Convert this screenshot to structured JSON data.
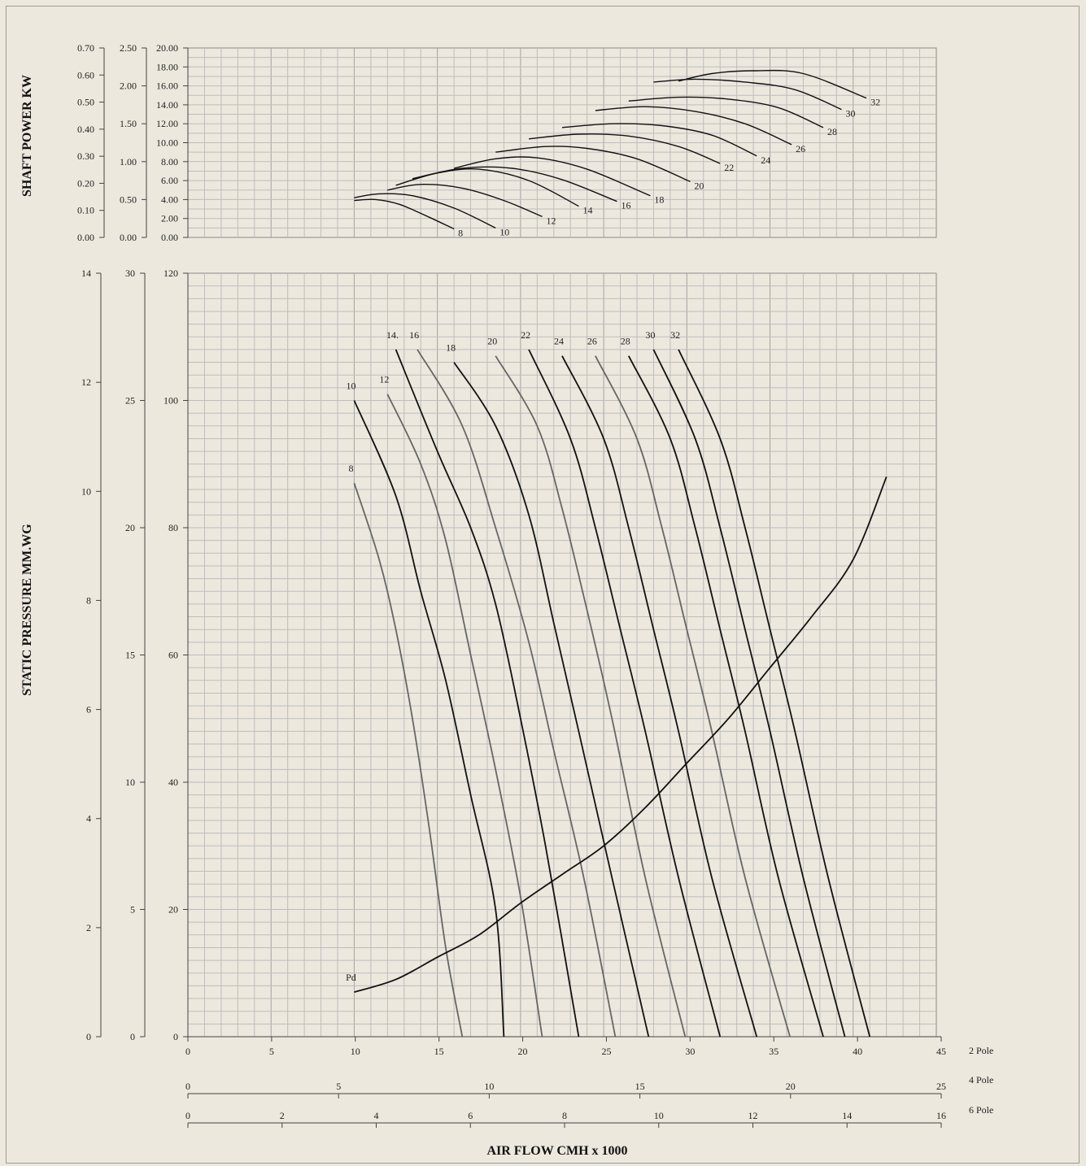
{
  "power_chart": {
    "ylabel": "SHAFT POWER KW",
    "axis_a": [
      "0.00",
      "0.10",
      "0.20",
      "0.30",
      "0.40",
      "0.50",
      "0.60",
      "0.70"
    ],
    "axis_b": [
      "0.00",
      "0.50",
      "1.00",
      "1.50",
      "2.00",
      "2.50"
    ],
    "axis_c": [
      "0.00",
      "2.00",
      "4.00",
      "6.00",
      "8.00",
      "10.00",
      "12.00",
      "14.00",
      "16.00",
      "18.00",
      "20.00"
    ]
  },
  "pressure_chart": {
    "ylabel": "STATIC PRESSURE MM.WG",
    "axis_a": [
      "0",
      "2",
      "4",
      "6",
      "8",
      "10",
      "12",
      "14"
    ],
    "axis_b": [
      "0",
      "5",
      "10",
      "15",
      "20",
      "25",
      "30"
    ],
    "axis_c": [
      "0",
      "20",
      "40",
      "60",
      "80",
      "100",
      "120"
    ]
  },
  "x_axes": {
    "pole2": {
      "label": "2 Pole",
      "ticks": [
        "0",
        "5",
        "10",
        "15",
        "20",
        "25",
        "30",
        "35",
        "40",
        "45"
      ]
    },
    "pole4": {
      "label": "4 Pole",
      "ticks": [
        "0",
        "5",
        "10",
        "15",
        "20",
        "25"
      ]
    },
    "pole6": {
      "label": "6 Pole",
      "ticks": [
        "0",
        "2",
        "4",
        "6",
        "8",
        "10",
        "12",
        "14",
        "16"
      ]
    },
    "title": "AIR FLOW CMH x 1000"
  },
  "colors": {
    "black": "#111111",
    "gray": "#666666",
    "grid": "#bdbdbd",
    "background": "#ece8de"
  },
  "chart_data": [
    {
      "type": "line",
      "xlabel": "AIR FLOW CMH x 1000",
      "ylabel": "SHAFT POWER KW",
      "xlim": [
        0,
        45
      ],
      "ylim": [
        0,
        20
      ],
      "series": [
        {
          "name": "8",
          "color": "black",
          "x": [
            10,
            11.3,
            12.7,
            14.3,
            16
          ],
          "y": [
            3.9,
            4.0,
            3.5,
            2.3,
            0.9
          ]
        },
        {
          "name": "10",
          "color": "black",
          "x": [
            10,
            11.5,
            13.5,
            16,
            18.5
          ],
          "y": [
            4.2,
            4.6,
            4.4,
            3.1,
            1.0
          ]
        },
        {
          "name": "12",
          "color": "black",
          "x": [
            12,
            14,
            16.5,
            19,
            21.3
          ],
          "y": [
            5.0,
            5.6,
            5.2,
            3.9,
            2.2
          ]
        },
        {
          "name": "14",
          "color": "black",
          "x": [
            12.5,
            15,
            17.5,
            20.5,
            23.5
          ],
          "y": [
            5.5,
            6.8,
            7.2,
            6.0,
            3.3
          ]
        },
        {
          "name": "16",
          "color": "black",
          "x": [
            13.5,
            16.5,
            19.5,
            22.5,
            25.8
          ],
          "y": [
            6.2,
            7.3,
            7.3,
            6.1,
            3.8
          ]
        },
        {
          "name": "18",
          "color": "black",
          "x": [
            16,
            18.5,
            21,
            24,
            27.8
          ],
          "y": [
            7.3,
            8.3,
            8.4,
            7.2,
            4.4
          ]
        },
        {
          "name": "20",
          "color": "black",
          "x": [
            18.5,
            21.5,
            24,
            27,
            30.2
          ],
          "y": [
            9.0,
            9.6,
            9.4,
            8.3,
            5.9
          ]
        },
        {
          "name": "22",
          "color": "black",
          "x": [
            20.5,
            23.5,
            26.5,
            29.5,
            32
          ],
          "y": [
            10.4,
            10.9,
            10.7,
            9.6,
            7.8
          ]
        },
        {
          "name": "24",
          "color": "black",
          "x": [
            22.5,
            25.5,
            28.5,
            31.5,
            34.2
          ],
          "y": [
            11.6,
            12.0,
            11.8,
            10.8,
            8.6
          ]
        },
        {
          "name": "26",
          "color": "black",
          "x": [
            24.5,
            27.5,
            30.5,
            33.5,
            36.3
          ],
          "y": [
            13.4,
            13.8,
            13.3,
            12.0,
            9.8
          ]
        },
        {
          "name": "28",
          "color": "black",
          "x": [
            26.5,
            29.5,
            32.5,
            35.5,
            38.2
          ],
          "y": [
            14.4,
            14.8,
            14.6,
            13.7,
            11.6
          ]
        },
        {
          "name": "30",
          "color": "black",
          "x": [
            28,
            30.5,
            33.5,
            36.5,
            39.3
          ],
          "y": [
            16.4,
            16.7,
            16.4,
            15.6,
            13.5
          ]
        },
        {
          "name": "32",
          "color": "black",
          "x": [
            29.5,
            31.5,
            34,
            37,
            40.8
          ],
          "y": [
            16.5,
            17.3,
            17.6,
            17.3,
            14.7
          ]
        }
      ]
    },
    {
      "type": "line",
      "xlabel": "AIR FLOW CMH x 1000",
      "ylabel": "STATIC PRESSURE MM.WG",
      "xlim": [
        0,
        45
      ],
      "ylim": [
        0,
        120
      ],
      "series": [
        {
          "name": "8",
          "color": "gray",
          "x": [
            10,
            11.5,
            12.5,
            13.5,
            14.5,
            15.5,
            16.5
          ],
          "y": [
            87,
            75,
            64,
            50,
            33,
            14,
            0
          ]
        },
        {
          "name": "10",
          "color": "black",
          "x": [
            10,
            12.5,
            14,
            15.5,
            17,
            18.5,
            19
          ],
          "y": [
            100,
            85,
            70,
            56,
            38,
            20,
            0
          ]
        },
        {
          "name": "12",
          "color": "gray",
          "x": [
            12,
            14,
            15.5,
            17,
            18.5,
            20,
            21.3
          ],
          "y": [
            101,
            90,
            78,
            60,
            42,
            22,
            0
          ]
        },
        {
          "name": "14.",
          "color": "black",
          "x": [
            12.5,
            15,
            17,
            18.5,
            20,
            21.5,
            23.5
          ],
          "y": [
            108,
            92,
            80,
            68,
            50,
            30,
            0
          ]
        },
        {
          "name": "16",
          "color": "gray",
          "x": [
            13.8,
            16.5,
            18.5,
            20.5,
            22,
            23.8,
            25.7
          ],
          "y": [
            108,
            96,
            80,
            62,
            45,
            25,
            0
          ]
        },
        {
          "name": "18",
          "color": "black",
          "x": [
            16,
            18.5,
            20.5,
            22,
            23.5,
            25.5,
            27.7
          ],
          "y": [
            106,
            96,
            82,
            65,
            48,
            25,
            0
          ]
        },
        {
          "name": "20",
          "color": "gray",
          "x": [
            18.5,
            21,
            22.5,
            24,
            25.5,
            27.5,
            29.9
          ],
          "y": [
            107,
            96,
            83,
            67,
            50,
            25,
            0
          ]
        },
        {
          "name": "22",
          "color": "black",
          "x": [
            20.5,
            23,
            24.5,
            26,
            27.5,
            29.5,
            32
          ],
          "y": [
            108,
            94,
            80,
            64,
            48,
            25,
            0
          ]
        },
        {
          "name": "24",
          "color": "black",
          "x": [
            22.5,
            25,
            26.5,
            28,
            29.5,
            31.5,
            34.2
          ],
          "y": [
            107,
            94,
            80,
            64,
            48,
            25,
            0
          ]
        },
        {
          "name": "26",
          "color": "gray",
          "x": [
            24.5,
            27,
            28.5,
            30,
            31.5,
            33.5,
            36.2
          ],
          "y": [
            107,
            94,
            80,
            64,
            48,
            25,
            0
          ]
        },
        {
          "name": "28",
          "color": "black",
          "x": [
            26.5,
            29,
            30.5,
            32,
            33.5,
            35.5,
            38.2
          ],
          "y": [
            107,
            94,
            80,
            64,
            48,
            25,
            0
          ]
        },
        {
          "name": "30",
          "color": "black",
          "x": [
            28,
            30.5,
            32,
            33.5,
            35,
            37,
            39.5
          ],
          "y": [
            108,
            94,
            80,
            64,
            48,
            25,
            0
          ]
        },
        {
          "name": "32",
          "color": "black",
          "x": [
            29.5,
            32,
            33.5,
            35,
            36.5,
            38.5,
            41
          ],
          "y": [
            108,
            94,
            80,
            64,
            48,
            25,
            0
          ]
        },
        {
          "name": "Pd",
          "color": "black",
          "x": [
            10,
            12.5,
            15,
            17.5,
            20,
            22.5,
            25,
            27.5,
            30,
            32.5,
            35,
            37.5,
            40,
            42
          ],
          "y": [
            7,
            9,
            12.5,
            16,
            21,
            25.5,
            30,
            36,
            43,
            50,
            58,
            66,
            75,
            88
          ]
        }
      ]
    }
  ]
}
